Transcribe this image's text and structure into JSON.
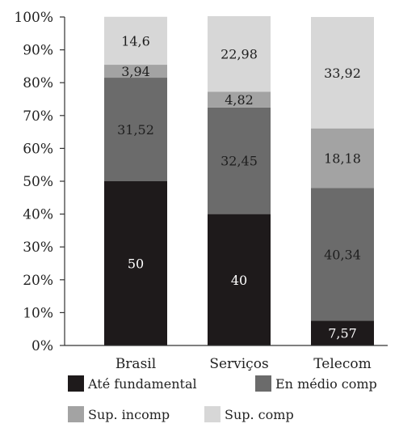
{
  "chart_data": {
    "type": "bar",
    "stacked": true,
    "normalized": true,
    "title": "",
    "xlabel": "",
    "ylabel": "",
    "ylim": [
      0,
      100
    ],
    "yticks": [
      "0%",
      "10%",
      "20%",
      "30%",
      "40%",
      "50%",
      "60%",
      "70%",
      "80%",
      "90%",
      "100%"
    ],
    "categories": [
      "Brasil",
      "Serviços",
      "Telecom"
    ],
    "series": [
      {
        "name": "Até fundamental",
        "color": "#1e1a1b",
        "label_color": "#ffffff",
        "values": [
          50,
          40,
          7.57
        ],
        "labels": [
          "50",
          "40",
          "7,57"
        ]
      },
      {
        "name": "En médio  comp",
        "color": "#6b6b6b",
        "label_color": "#1e1e1e",
        "values": [
          31.52,
          32.45,
          40.34
        ],
        "labels": [
          "31,52",
          "32,45",
          "40,34"
        ]
      },
      {
        "name": "Sup.  incomp",
        "color": "#a3a3a3",
        "label_color": "#1e1e1e",
        "values": [
          3.94,
          4.82,
          18.18
        ],
        "labels": [
          "3,94",
          "4,82",
          "18,18"
        ]
      },
      {
        "name": "Sup.  comp",
        "color": "#d7d7d7",
        "label_color": "#1e1e1e",
        "values": [
          14.6,
          22.98,
          33.92
        ],
        "labels": [
          "14,6",
          "22,98",
          "33,92"
        ]
      }
    ],
    "grid": false,
    "legend": "bottom"
  }
}
